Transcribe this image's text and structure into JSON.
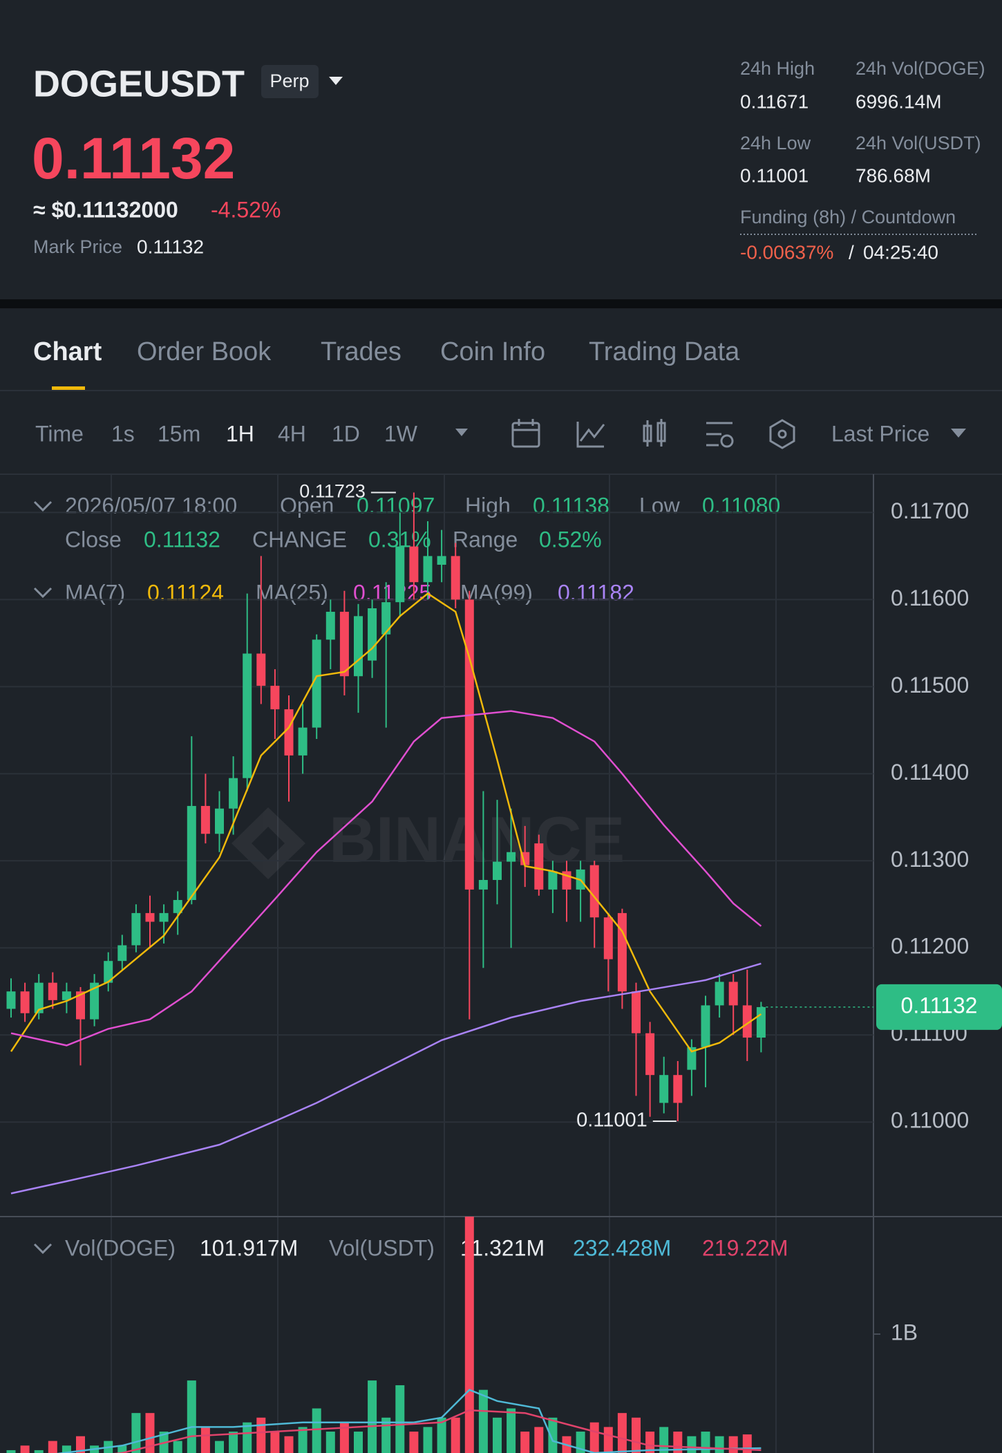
{
  "header": {
    "symbol": "DOGEUSDT",
    "badge": "Perp",
    "price": "0.11132",
    "usd_price": "≈ $0.11132000",
    "change": "-4.52%",
    "mark_price_label": "Mark Price",
    "mark_price": "0.11132",
    "stats": [
      {
        "label": "24h High",
        "value": "0.11671"
      },
      {
        "label": "24h Vol(DOGE)",
        "value": "6996.14M"
      },
      {
        "label": "24h Low",
        "value": "0.11001"
      },
      {
        "label": "24h Vol(USDT)",
        "value": "786.68M"
      }
    ],
    "funding_label": "Funding (8h) / Countdown",
    "funding_rate": "-0.00637%",
    "funding_separator": "/",
    "countdown": "04:25:40"
  },
  "tabs": [
    "Chart",
    "Order Book",
    "Trades",
    "Coin Info",
    "Trading Data"
  ],
  "toolbar": {
    "intervals": [
      "Time",
      "1s",
      "15m",
      "1H",
      "4H",
      "1D",
      "1W"
    ],
    "price_type": "Last Price"
  },
  "legend": {
    "time": "2026/05/07 18:00",
    "items": [
      {
        "label": "Open",
        "value": "0.11097"
      },
      {
        "label": "High",
        "value": "0.11138"
      },
      {
        "label": "Low",
        "value": "0.11080"
      },
      {
        "label": "Close",
        "value": "0.11132"
      },
      {
        "label": "CHANGE",
        "value": "0.31%"
      },
      {
        "label": "Range",
        "value": "0.52%"
      }
    ]
  },
  "volume_legend": {
    "items": [
      {
        "label": "Vol(DOGE)",
        "value": "101.917M"
      },
      {
        "label": "Vol(USDT)",
        "value": "11.321M"
      }
    ],
    "ma_values": [
      "232.428M",
      "219.22M"
    ]
  },
  "watermark": "BINANCE",
  "chart_data": [
    {
      "type": "candlestick",
      "up_color": "#2ebd85",
      "down_color": "#f6465d",
      "grid": true,
      "ylim": [
        0.10893,
        0.11744
      ],
      "yticks": [
        {
          "value": 0.117,
          "label": "0.11700"
        },
        {
          "value": 0.116,
          "label": "0.11600"
        },
        {
          "value": 0.115,
          "label": "0.11500"
        },
        {
          "value": 0.114,
          "label": "0.11400"
        },
        {
          "value": 0.113,
          "label": "0.11300"
        },
        {
          "value": 0.112,
          "label": "0.11200"
        },
        {
          "value": 0.111,
          "label": "0.11100"
        },
        {
          "value": 0.11,
          "label": "0.11000"
        }
      ],
      "candles": [
        [
          0.1113,
          0.11165,
          0.1112,
          0.1115
        ],
        [
          0.1115,
          0.1116,
          0.11115,
          0.11125
        ],
        [
          0.11125,
          0.1117,
          0.11118,
          0.1116
        ],
        [
          0.1116,
          0.11172,
          0.1113,
          0.1114
        ],
        [
          0.1114,
          0.1116,
          0.11125,
          0.1115
        ],
        [
          0.1115,
          0.11155,
          0.11065,
          0.11118
        ],
        [
          0.11118,
          0.1117,
          0.1111,
          0.1116
        ],
        [
          0.1116,
          0.11195,
          0.1115,
          0.11185
        ],
        [
          0.11185,
          0.11215,
          0.11175,
          0.11203
        ],
        [
          0.11203,
          0.1125,
          0.11195,
          0.1124
        ],
        [
          0.1124,
          0.1126,
          0.112,
          0.1123
        ],
        [
          0.1123,
          0.1125,
          0.11205,
          0.1124
        ],
        [
          0.1124,
          0.11265,
          0.11215,
          0.11255
        ],
        [
          0.11255,
          0.11443,
          0.1125,
          0.11363
        ],
        [
          0.11363,
          0.114,
          0.1132,
          0.11331
        ],
        [
          0.11331,
          0.1138,
          0.1131,
          0.1136
        ],
        [
          0.1136,
          0.1142,
          0.1133,
          0.11395
        ],
        [
          0.11395,
          0.11607,
          0.1138,
          0.11538
        ],
        [
          0.11538,
          0.1165,
          0.1148,
          0.11501
        ],
        [
          0.11501,
          0.1152,
          0.1144,
          0.11474
        ],
        [
          0.11474,
          0.1149,
          0.11368,
          0.11421
        ],
        [
          0.11421,
          0.1148,
          0.114,
          0.11453
        ],
        [
          0.11453,
          0.1156,
          0.1144,
          0.11554
        ],
        [
          0.11554,
          0.116,
          0.1152,
          0.11586
        ],
        [
          0.11586,
          0.1161,
          0.1149,
          0.11512
        ],
        [
          0.11512,
          0.11595,
          0.1147,
          0.11581
        ],
        [
          0.1153,
          0.116,
          0.1151,
          0.1159
        ],
        [
          0.1156,
          0.1162,
          0.11453,
          0.11597
        ],
        [
          0.11597,
          0.117,
          0.1158,
          0.11661
        ],
        [
          0.11661,
          0.11723,
          0.116,
          0.1162
        ],
        [
          0.1162,
          0.1169,
          0.116,
          0.1165
        ],
        [
          0.1164,
          0.1168,
          0.1162,
          0.1165
        ],
        [
          0.1165,
          0.11665,
          0.1159,
          0.116
        ],
        [
          0.116,
          0.1161,
          0.11118,
          0.11267
        ],
        [
          0.11267,
          0.1138,
          0.11177,
          0.11278
        ],
        [
          0.11278,
          0.1137,
          0.1125,
          0.11299
        ],
        [
          0.11299,
          0.1136,
          0.112,
          0.1131
        ],
        [
          0.1131,
          0.1134,
          0.1127,
          0.11295
        ],
        [
          0.1132,
          0.1133,
          0.1126,
          0.11267
        ],
        [
          0.11267,
          0.113,
          0.1124,
          0.11288
        ],
        [
          0.11288,
          0.113,
          0.1123,
          0.11267
        ],
        [
          0.11267,
          0.113,
          0.1123,
          0.1129
        ],
        [
          0.11295,
          0.113,
          0.112,
          0.11235
        ],
        [
          0.11235,
          0.1124,
          0.1115,
          0.11187
        ],
        [
          0.1124,
          0.11245,
          0.1113,
          0.1115
        ],
        [
          0.1115,
          0.1116,
          0.1103,
          0.11102
        ],
        [
          0.11102,
          0.11115,
          0.11006,
          0.11054
        ],
        [
          0.11022,
          0.11075,
          0.1101,
          0.11054
        ],
        [
          0.11054,
          0.1107,
          0.11001,
          0.11022
        ],
        [
          0.1106,
          0.11095,
          0.1103,
          0.11086
        ],
        [
          0.11086,
          0.11145,
          0.1104,
          0.11134
        ],
        [
          0.11134,
          0.1117,
          0.1112,
          0.11161
        ],
        [
          0.11161,
          0.1117,
          0.111,
          0.11134
        ],
        [
          0.11134,
          0.11175,
          0.1107,
          0.11097
        ],
        [
          0.11097,
          0.11138,
          0.1108,
          0.11132
        ]
      ],
      "lines": [
        {
          "name": "MA(7)",
          "color": "#f0b90b",
          "x": [
            0,
            2,
            4,
            7,
            11,
            15,
            18,
            20,
            22,
            24,
            26,
            28,
            30,
            32,
            33,
            35,
            37,
            39,
            41,
            44,
            46,
            49,
            51,
            54
          ],
          "values": [
            0.11081,
            0.11129,
            0.11139,
            0.11161,
            0.11214,
            0.11304,
            0.11421,
            0.11453,
            0.11512,
            0.11517,
            0.11544,
            0.11581,
            0.11607,
            0.11586,
            0.11533,
            0.11416,
            0.11294,
            0.11288,
            0.11278,
            0.11219,
            0.1115,
            0.11081,
            0.11091,
            0.11124
          ]
        },
        {
          "name": "MA(25)",
          "color": "#e04fd0",
          "x": [
            0,
            4,
            7,
            10,
            13,
            16,
            19,
            22,
            26,
            29,
            31,
            36,
            39,
            42,
            44,
            47,
            50,
            52,
            54
          ],
          "values": [
            0.11102,
            0.11088,
            0.11107,
            0.11118,
            0.1115,
            0.11203,
            0.11256,
            0.1131,
            0.11368,
            0.11437,
            0.11464,
            0.11472,
            0.11464,
            0.11437,
            0.114,
            0.11341,
            0.11288,
            0.11251,
            0.11225
          ]
        },
        {
          "name": "MA(99)",
          "color": "#a983f5",
          "x": [
            0,
            4,
            9,
            15,
            19,
            22,
            26,
            31,
            36,
            41,
            46,
            50,
            54
          ],
          "values": [
            0.10918,
            0.10932,
            0.1095,
            0.10974,
            0.11001,
            0.11022,
            0.11054,
            0.11094,
            0.1112,
            0.11139,
            0.11152,
            0.11163,
            0.11182
          ]
        }
      ],
      "high_label": "0.11723",
      "low_label": "0.11001",
      "last_price_label": "0.11132"
    },
    {
      "type": "bar",
      "ylim": [
        0,
        1800000000
      ],
      "yticks": [
        {
          "value": 1000000000,
          "label": "1B"
        }
      ],
      "values": [
        219000000,
        250000000,
        219000000,
        281000000,
        250000000,
        313000000,
        250000000,
        281000000,
        250000000,
        469000000,
        469000000,
        344000000,
        281000000,
        688000000,
        375000000,
        281000000,
        344000000,
        406000000,
        438000000,
        344000000,
        313000000,
        375000000,
        500000000,
        344000000,
        406000000,
        344000000,
        688000000,
        438000000,
        656000000,
        344000000,
        375000000,
        438000000,
        438000000,
        1794000000,
        625000000,
        438000000,
        500000000,
        344000000,
        375000000,
        438000000,
        313000000,
        344000000,
        406000000,
        375000000,
        469000000,
        438000000,
        344000000,
        375000000,
        344000000,
        313000000,
        344000000,
        313000000,
        313000000,
        325000000,
        101917000
      ],
      "lines": [
        {
          "color": "#4fb9d6",
          "x": [
            0,
            8,
            13,
            16,
            21,
            29,
            31,
            33,
            35,
            38,
            39,
            42,
            46,
            54
          ],
          "values": [
            156000000,
            250000000,
            375000000,
            375000000,
            406000000,
            406000000,
            438000000,
            625000000,
            550000000,
            500000000,
            281000000,
            200000000,
            219000000,
            232428000
          ]
        },
        {
          "color": "#e0436b",
          "x": [
            0,
            8,
            13,
            19,
            31,
            33,
            37,
            42,
            46,
            54
          ],
          "values": [
            125000000,
            200000000,
            313000000,
            344000000,
            406000000,
            488000000,
            469000000,
            344000000,
            250000000,
            219220000
          ]
        }
      ]
    }
  ]
}
